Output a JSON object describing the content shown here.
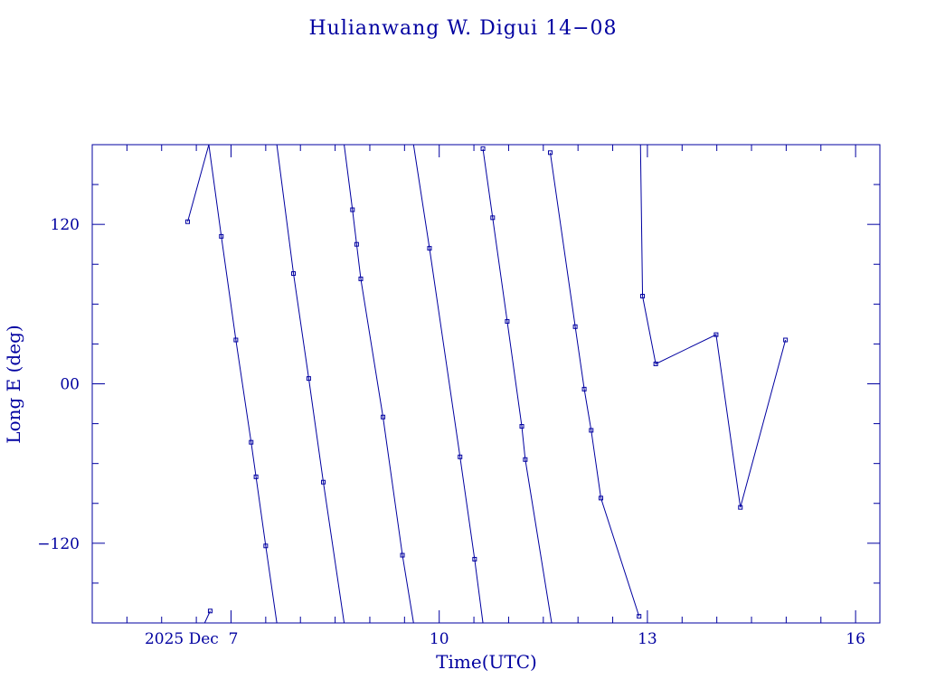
{
  "chart_data": {
    "type": "line",
    "title": "Hulianwang W. Digui 14−08",
    "xlabel": "Time(UTC)",
    "ylabel": "Long E (deg)",
    "x_unit": "days (December 2025)",
    "xlim": [
      5.0,
      16.35
    ],
    "ylim": [
      -180,
      180
    ],
    "x_ticks": [
      {
        "value": 7,
        "label": "2025 Dec  7"
      },
      {
        "value": 10,
        "label": "10"
      },
      {
        "value": 13,
        "label": "13"
      },
      {
        "value": 16,
        "label": "16"
      }
    ],
    "y_ticks": [
      {
        "value": 120,
        "label": "120"
      },
      {
        "value": 0,
        "label": "00"
      },
      {
        "value": -120,
        "label": "−120"
      }
    ],
    "grid": false,
    "legend": "none",
    "color": "#0000a0",
    "series": [
      {
        "points": [
          [
            6.375,
            122
          ],
          [
            6.68,
            180
          ]
        ]
      },
      {
        "points": [
          [
            6.62,
            -180
          ],
          [
            6.7,
            -171
          ]
        ]
      },
      {
        "points": [
          [
            6.68,
            180
          ],
          [
            6.86,
            111
          ],
          [
            7.07,
            33
          ],
          [
            7.29,
            -44
          ],
          [
            7.36,
            -70
          ],
          [
            7.5,
            -122
          ],
          [
            7.66,
            -180
          ]
        ]
      },
      {
        "points": [
          [
            7.66,
            180
          ],
          [
            7.9,
            83
          ],
          [
            8.12,
            4
          ],
          [
            8.33,
            -74
          ],
          [
            8.63,
            -180
          ]
        ]
      },
      {
        "points": [
          [
            8.63,
            180
          ],
          [
            8.75,
            131
          ],
          [
            8.81,
            105
          ],
          [
            8.87,
            79
          ],
          [
            9.19,
            -25
          ],
          [
            9.47,
            -129
          ],
          [
            9.63,
            -180
          ]
        ]
      },
      {
        "points": [
          [
            9.63,
            180
          ],
          [
            9.86,
            102
          ],
          [
            10.3,
            -55
          ],
          [
            10.51,
            -132
          ],
          [
            10.63,
            -180
          ]
        ]
      },
      {
        "points": [
          [
            10.63,
            177
          ],
          [
            10.77,
            125
          ],
          [
            10.98,
            47
          ],
          [
            11.19,
            -32
          ],
          [
            11.24,
            -57
          ],
          [
            11.62,
            -180
          ]
        ]
      },
      {
        "points": [
          [
            11.6,
            174
          ],
          [
            11.96,
            43
          ],
          [
            12.09,
            -4
          ],
          [
            12.19,
            -35
          ],
          [
            12.33,
            -86
          ],
          [
            12.88,
            -175
          ]
        ]
      },
      {
        "points": [
          [
            12.9,
            180
          ],
          [
            12.93,
            66
          ],
          [
            13.12,
            15
          ],
          [
            13.99,
            37
          ],
          [
            14.34,
            -93
          ],
          [
            14.99,
            33
          ]
        ]
      }
    ]
  }
}
